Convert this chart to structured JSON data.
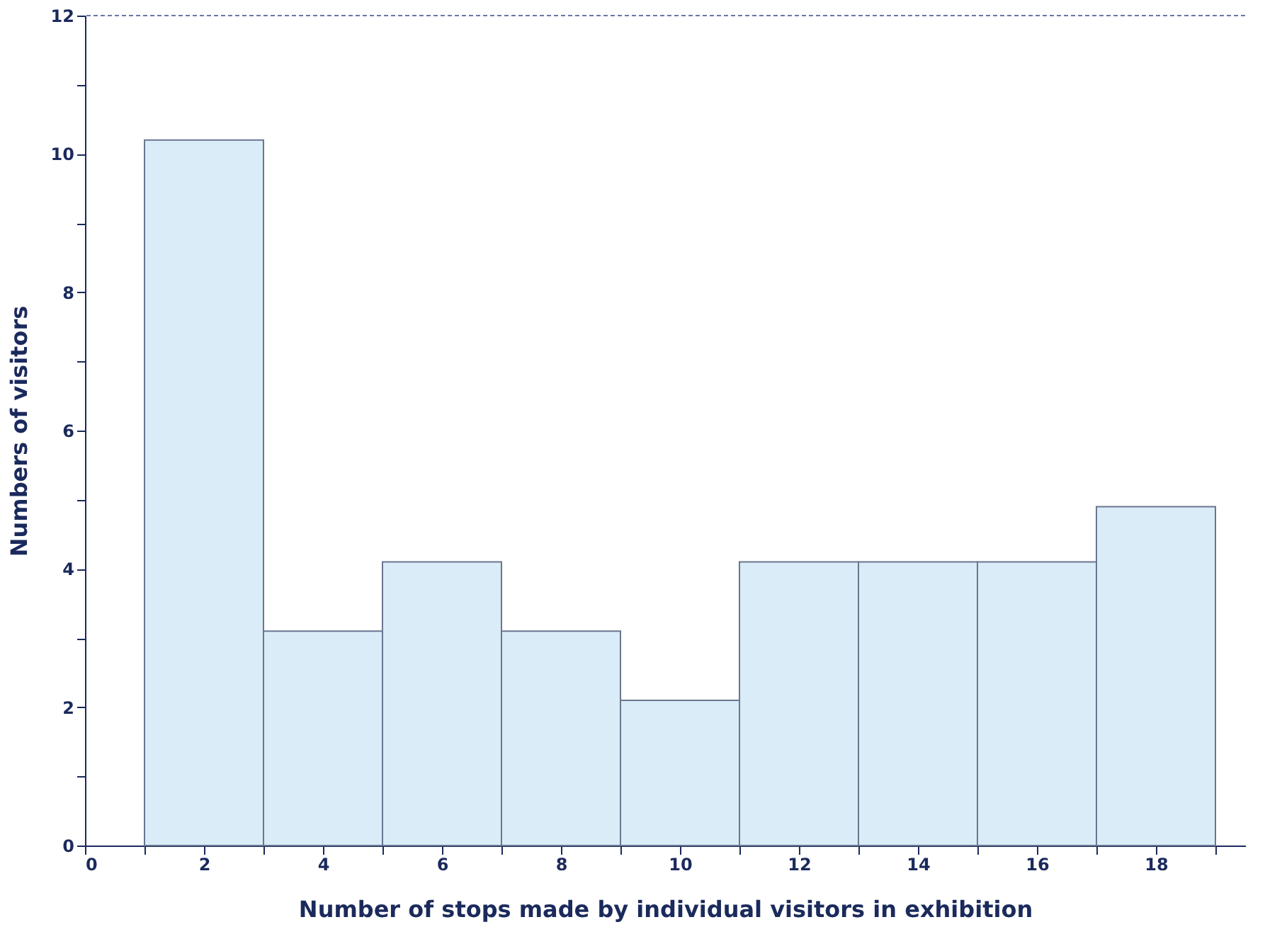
{
  "chart_data": {
    "type": "histogram",
    "xlabel": "Number of stops made by individual visitors in exhibition",
    "ylabel": "Numbers of visitors",
    "bins": [
      1,
      3,
      5,
      7,
      9,
      11,
      13,
      15,
      17,
      19
    ],
    "values": [
      10.2,
      3.1,
      4.1,
      3.1,
      2.1,
      4.1,
      4.1,
      4.1,
      4.9
    ],
    "color": "#d9ecf7",
    "xlim": [
      0,
      19.5
    ],
    "xticks": [
      0,
      {
        "value": 1,
        "label": null
      },
      2,
      {
        "value": 3,
        "label": null
      },
      4,
      {
        "value": 5,
        "label": null
      },
      6,
      {
        "value": 7,
        "label": null
      },
      8,
      {
        "value": 9,
        "label": null
      },
      10,
      {
        "value": 11,
        "label": null
      },
      12,
      {
        "value": 13,
        "label": null
      },
      14,
      {
        "value": 15,
        "label": null
      },
      16,
      {
        "value": 17,
        "label": null
      },
      18,
      {
        "value": 19,
        "label": null
      }
    ],
    "ylim": [
      0,
      12
    ],
    "yticks": [
      0,
      {
        "value": 1,
        "label": null
      },
      2,
      {
        "value": 3,
        "label": null
      },
      4,
      {
        "value": 5,
        "label": null
      },
      6,
      {
        "value": 7,
        "label": null
      },
      8,
      {
        "value": 9,
        "label": null
      },
      10,
      {
        "value": 11,
        "label": null
      },
      12
    ],
    "ref_lines": [
      {
        "axis": "y",
        "value": 12,
        "color": "#3a4a8a",
        "line_style": "dashed"
      }
    ],
    "grid": false
  }
}
